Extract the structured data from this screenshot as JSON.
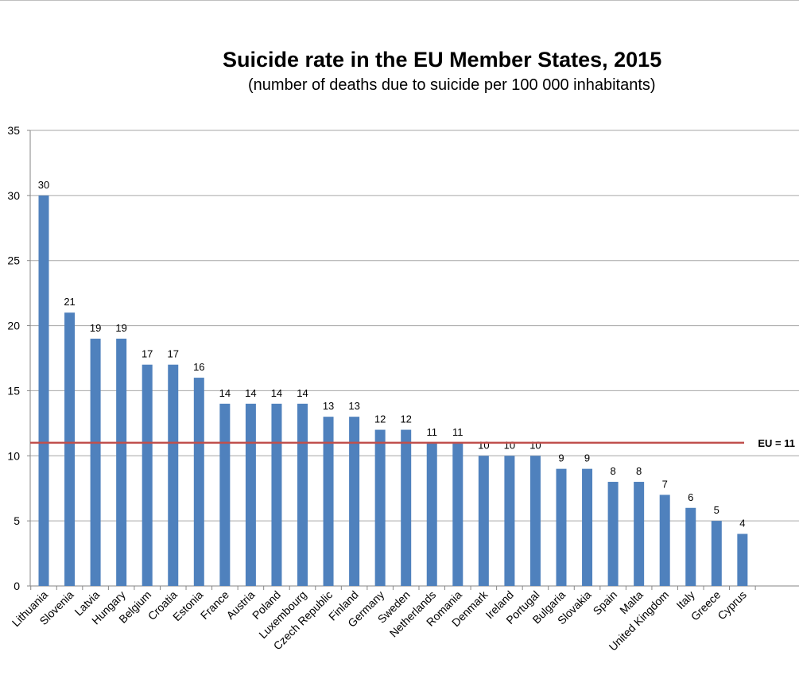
{
  "chart_data": {
    "type": "bar",
    "title": "Suicide rate in the EU Member States,  2015",
    "subtitle": "(number of deaths due to suicide per 100 000 inhabitants)",
    "categories": [
      "Lithuania",
      "Slovenia",
      "Latvia",
      "Hungary",
      "Belgium",
      "Croatia",
      "Estonia",
      "France",
      "Austria",
      "Poland",
      "Luxembourg",
      "Czech Republic",
      "Finland",
      "Germany",
      "Sweden",
      "Netherlands",
      "Romania",
      "Denmark",
      "Ireland",
      "Portugal",
      "Bulgaria",
      "Slovakia",
      "Spain",
      "Malta",
      "United Kingdom",
      "Italy",
      "Greece",
      "Cyprus"
    ],
    "values": [
      30,
      21,
      19,
      19,
      17,
      17,
      16,
      14,
      14,
      14,
      14,
      13,
      13,
      12,
      12,
      11,
      11,
      10,
      10,
      10,
      9,
      9,
      8,
      8,
      7,
      6,
      5,
      4
    ],
    "data_labels": [
      "30",
      "21",
      "19",
      "19",
      "17",
      "17",
      "16",
      "14",
      "14",
      "14",
      "14",
      "13",
      "13",
      "12",
      "12",
      "11",
      "11",
      "10",
      "10",
      "10",
      "9",
      "9",
      "8",
      "8",
      "7",
      "6",
      "5",
      "4"
    ],
    "yticks": [
      "0",
      "5",
      "10",
      "15",
      "20",
      "25",
      "30",
      "35"
    ],
    "ylim": [
      0,
      35
    ],
    "grid": true,
    "bar_color": "#4f81bd",
    "reference_line": {
      "label": "EU = 11",
      "value": 11,
      "color": "#c0504d"
    }
  }
}
